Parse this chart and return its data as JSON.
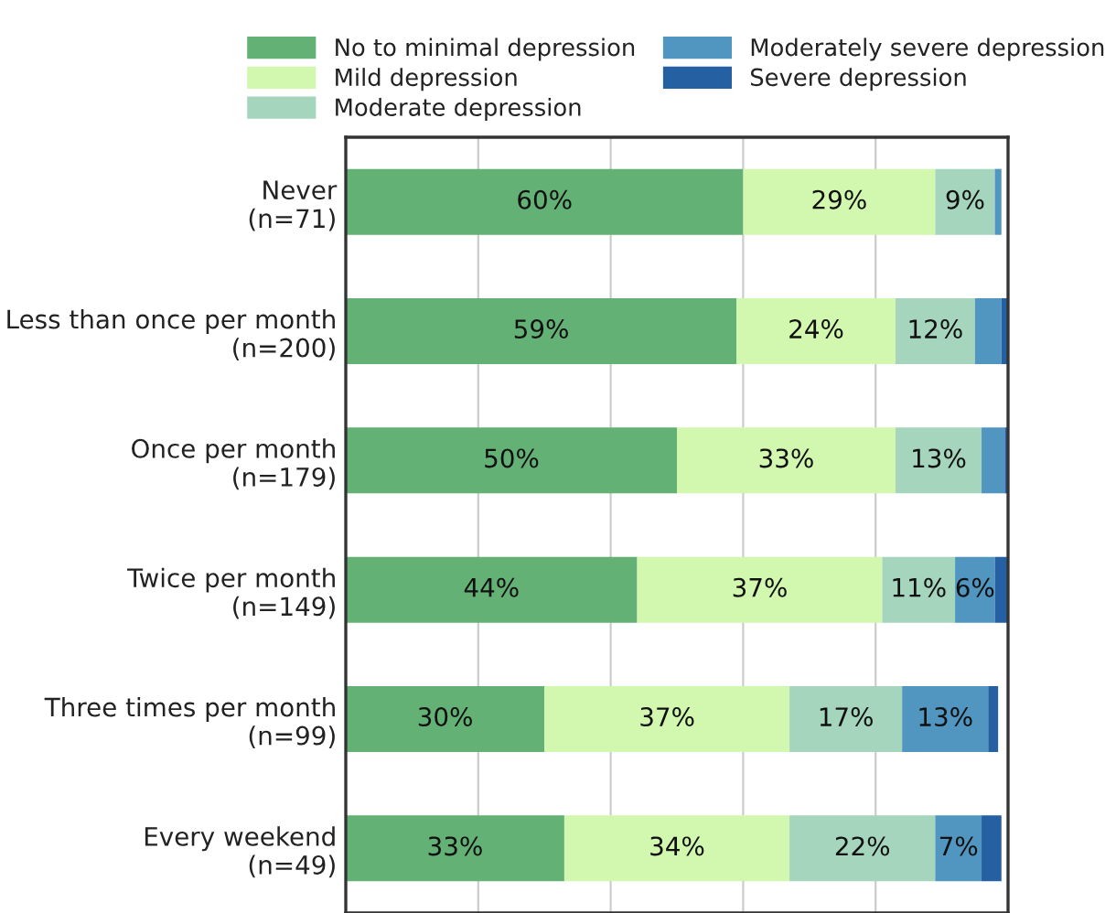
{
  "chart_data": {
    "type": "bar",
    "orientation": "horizontal",
    "stacked": true,
    "categories": [
      "Never\n(n=71)",
      "Less than once per month\n(n=200)",
      "Once per month\n(n=179)",
      "Twice per month\n(n=149)",
      "Three times per month\n(n=99)",
      "Every weekend\n(n=49)"
    ],
    "series": [
      {
        "name": "No to minimal depression",
        "color": "#63b175",
        "values": [
          60,
          59,
          50,
          44,
          30,
          33
        ],
        "value_labels": [
          "60%",
          "59%",
          "50%",
          "44%",
          "30%",
          "33%"
        ]
      },
      {
        "name": "Mild depression",
        "color": "#d2f8b0",
        "values": [
          29,
          24,
          33,
          37,
          37,
          34
        ],
        "value_labels": [
          "29%",
          "24%",
          "33%",
          "37%",
          "37%",
          "34%"
        ]
      },
      {
        "name": "Moderate depression",
        "color": "#a5d5bd",
        "values": [
          9,
          12,
          13,
          11,
          17,
          22
        ],
        "value_labels": [
          "9%",
          "12%",
          "13%",
          "11%",
          "17%",
          "22%"
        ]
      },
      {
        "name": "Moderately severe depression",
        "color": "#5096c0",
        "values": [
          1,
          4,
          3.5,
          6,
          13,
          7
        ],
        "value_labels": [
          null,
          null,
          null,
          "6%",
          "13%",
          "7%"
        ]
      },
      {
        "name": "Severe depression",
        "color": "#2460a2",
        "values": [
          0,
          1,
          0.5,
          2,
          1.5,
          3
        ],
        "value_labels": [
          null,
          null,
          null,
          null,
          null,
          null
        ]
      }
    ],
    "xlim": [
      0,
      100
    ],
    "xticks": [
      {
        "value": 0,
        "label": null
      },
      {
        "value": 20,
        "label": null
      },
      {
        "value": 40,
        "label": null
      },
      {
        "value": 60,
        "label": null
      },
      {
        "value": 80,
        "label": null
      },
      {
        "value": 100,
        "label": null
      }
    ],
    "tick_labels": "y",
    "grid": "x",
    "legend": "top"
  }
}
